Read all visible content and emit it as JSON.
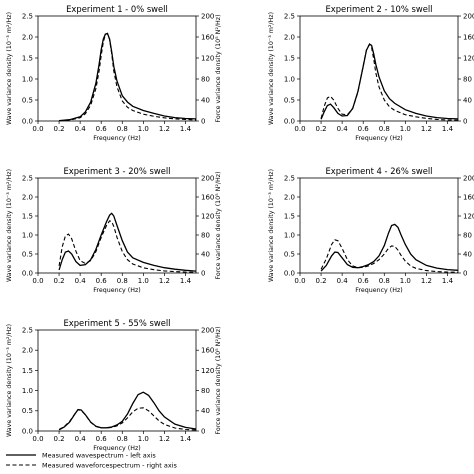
{
  "chart_data": [
    {
      "type": "line",
      "title": "Experiment 1 - 0% swell",
      "xlabel": "Frequency (Hz)",
      "ylabel_left": "Wave variance density (10⁻³ m²/Hz)",
      "ylabel_right": "Force variance density (10⁵ N²/Hz)",
      "xlim": [
        0,
        1.5
      ],
      "ylim_left": [
        0,
        2.5
      ],
      "ylim_right": [
        0,
        200
      ],
      "xticks": [
        "0.0",
        "0.2",
        "0.4",
        "0.6",
        "0.8",
        "1.0",
        "1.2",
        "1.4"
      ],
      "yticks_left": [
        "0.0",
        "0.5",
        "1.0",
        "1.5",
        "2.0",
        "2.5"
      ],
      "yticks_right": [
        "0",
        "40",
        "80",
        "120",
        "160",
        "200"
      ],
      "series": [
        {
          "style": "solid",
          "x": [
            0.2,
            0.3,
            0.4,
            0.45,
            0.5,
            0.55,
            0.58,
            0.6,
            0.62,
            0.64,
            0.66,
            0.68,
            0.7,
            0.72,
            0.75,
            0.8,
            0.85,
            0.9,
            1.0,
            1.1,
            1.2,
            1.3,
            1.4,
            1.5
          ],
          "y": [
            0.01,
            0.03,
            0.1,
            0.22,
            0.45,
            0.9,
            1.35,
            1.7,
            1.95,
            2.07,
            2.08,
            1.95,
            1.65,
            1.3,
            0.95,
            0.6,
            0.45,
            0.35,
            0.25,
            0.18,
            0.12,
            0.08,
            0.06,
            0.05
          ]
        },
        {
          "style": "dashed",
          "x": [
            0.2,
            0.3,
            0.4,
            0.45,
            0.5,
            0.55,
            0.58,
            0.6,
            0.62,
            0.64,
            0.66,
            0.68,
            0.7,
            0.72,
            0.75,
            0.8,
            0.85,
            0.9,
            1.0,
            1.1,
            1.2,
            1.3,
            1.4,
            1.5
          ],
          "y": [
            0.5,
            1.5,
            6,
            14,
            30,
            62,
            95,
            125,
            150,
            165,
            167,
            155,
            128,
            95,
            65,
            38,
            26,
            20,
            13,
            9,
            6,
            4,
            3,
            2
          ]
        }
      ]
    },
    {
      "type": "line",
      "title": "Experiment 2 - 10% swell",
      "xlabel": "Frequency (Hz)",
      "ylabel_left": "Wave variance density (10⁻³ m²/Hz)",
      "ylabel_right": "Force variance density (10⁵ N²/Hz)",
      "xlim": [
        0,
        1.5
      ],
      "ylim_left": [
        0,
        2.5
      ],
      "ylim_right": [
        0,
        200
      ],
      "xticks": [
        "0.0",
        "0.2",
        "0.4",
        "0.6",
        "0.8",
        "1.0",
        "1.2",
        "1.4"
      ],
      "yticks_left": [
        "0.0",
        "0.5",
        "1.0",
        "1.5",
        "2.0",
        "2.5"
      ],
      "yticks_right": [
        "0",
        "40",
        "80",
        "120",
        "160",
        "200"
      ],
      "series": [
        {
          "style": "solid",
          "x": [
            0.2,
            0.23,
            0.26,
            0.29,
            0.32,
            0.36,
            0.4,
            0.45,
            0.5,
            0.55,
            0.6,
            0.63,
            0.66,
            0.68,
            0.7,
            0.72,
            0.75,
            0.8,
            0.85,
            0.9,
            1.0,
            1.1,
            1.2,
            1.3,
            1.4,
            1.5
          ],
          "y": [
            0.04,
            0.22,
            0.37,
            0.4,
            0.32,
            0.18,
            0.12,
            0.13,
            0.3,
            0.7,
            1.3,
            1.68,
            1.83,
            1.8,
            1.6,
            1.35,
            1.05,
            0.72,
            0.53,
            0.42,
            0.27,
            0.18,
            0.12,
            0.08,
            0.06,
            0.05
          ]
        },
        {
          "style": "dashed",
          "x": [
            0.2,
            0.23,
            0.26,
            0.29,
            0.32,
            0.36,
            0.4,
            0.45,
            0.5,
            0.55,
            0.6,
            0.63,
            0.66,
            0.68,
            0.7,
            0.72,
            0.75,
            0.8,
            0.85,
            0.9,
            1.0,
            1.1,
            1.2,
            1.3,
            1.4,
            1.5
          ],
          "y": [
            5,
            28,
            44,
            47,
            40,
            24,
            13,
            12,
            24,
            55,
            105,
            135,
            146,
            140,
            118,
            92,
            65,
            40,
            27,
            20,
            12,
            8,
            5,
            3,
            2,
            1.5
          ]
        }
      ]
    },
    {
      "type": "line",
      "title": "Experiment 3 - 20% swell",
      "xlabel": "Frequency (Hz)",
      "ylabel_left": "Wave variance density (10⁻³ m²/Hz)",
      "ylabel_right": "Force variance density (10⁵ N²/Hz)",
      "xlim": [
        0,
        1.5
      ],
      "ylim_left": [
        0,
        2.5
      ],
      "ylim_right": [
        0,
        200
      ],
      "xticks": [
        "0.0",
        "0.2",
        "0.4",
        "0.6",
        "0.8",
        "1.0",
        "1.2",
        "1.4"
      ],
      "yticks_left": [
        "0.0",
        "0.5",
        "1.0",
        "1.5",
        "2.0",
        "2.5"
      ],
      "yticks_right": [
        "0",
        "40",
        "80",
        "120",
        "160",
        "200"
      ],
      "series": [
        {
          "style": "solid",
          "x": [
            0.2,
            0.23,
            0.26,
            0.29,
            0.32,
            0.36,
            0.4,
            0.45,
            0.5,
            0.55,
            0.6,
            0.65,
            0.68,
            0.7,
            0.72,
            0.75,
            0.8,
            0.85,
            0.9,
            1.0,
            1.1,
            1.2,
            1.3,
            1.4,
            1.5
          ],
          "y": [
            0.08,
            0.35,
            0.55,
            0.58,
            0.5,
            0.3,
            0.2,
            0.22,
            0.35,
            0.62,
            1.0,
            1.35,
            1.52,
            1.57,
            1.5,
            1.25,
            0.85,
            0.55,
            0.4,
            0.28,
            0.2,
            0.14,
            0.1,
            0.07,
            0.05
          ]
        },
        {
          "style": "dashed",
          "x": [
            0.2,
            0.23,
            0.26,
            0.29,
            0.32,
            0.36,
            0.4,
            0.45,
            0.5,
            0.55,
            0.6,
            0.65,
            0.68,
            0.7,
            0.72,
            0.75,
            0.8,
            0.85,
            0.9,
            1.0,
            1.1,
            1.2,
            1.3,
            1.4,
            1.5
          ],
          "y": [
            15,
            55,
            78,
            82,
            72,
            46,
            26,
            20,
            26,
            45,
            75,
            100,
            110,
            108,
            98,
            75,
            45,
            28,
            19,
            11,
            7,
            4.5,
            3,
            2,
            1.5
          ]
        }
      ]
    },
    {
      "type": "line",
      "title": "Experiment 4 - 26% swell",
      "xlabel": "Frequency (Hz)",
      "ylabel_left": "Wave variance density (10⁻³ m²/Hz)",
      "ylabel_right": "Force variance density (10⁵ N²/Hz)",
      "xlim": [
        0,
        1.5
      ],
      "ylim_left": [
        0,
        2.5
      ],
      "ylim_right": [
        0,
        200
      ],
      "xticks": [
        "0.0",
        "0.2",
        "0.4",
        "0.6",
        "0.8",
        "1.0",
        "1.2",
        "1.4"
      ],
      "yticks_left": [
        "0.0",
        "0.5",
        "1.0",
        "1.5",
        "2.0",
        "2.5"
      ],
      "yticks_right": [
        "0",
        "40",
        "80",
        "120",
        "160",
        "200"
      ],
      "series": [
        {
          "style": "solid",
          "x": [
            0.2,
            0.25,
            0.3,
            0.33,
            0.36,
            0.4,
            0.45,
            0.5,
            0.55,
            0.6,
            0.65,
            0.7,
            0.75,
            0.8,
            0.84,
            0.87,
            0.9,
            0.93,
            0.96,
            1.0,
            1.05,
            1.1,
            1.2,
            1.3,
            1.4,
            1.5
          ],
          "y": [
            0.05,
            0.2,
            0.45,
            0.55,
            0.54,
            0.4,
            0.22,
            0.15,
            0.14,
            0.17,
            0.22,
            0.3,
            0.45,
            0.72,
            1.05,
            1.25,
            1.28,
            1.2,
            1.0,
            0.75,
            0.5,
            0.35,
            0.2,
            0.13,
            0.09,
            0.07
          ]
        },
        {
          "style": "dashed",
          "x": [
            0.2,
            0.25,
            0.3,
            0.33,
            0.36,
            0.4,
            0.45,
            0.5,
            0.55,
            0.6,
            0.65,
            0.7,
            0.75,
            0.8,
            0.84,
            0.87,
            0.9,
            0.93,
            0.96,
            1.0,
            1.05,
            1.1,
            1.2,
            1.3,
            1.4,
            1.5
          ],
          "y": [
            8,
            30,
            60,
            70,
            68,
            52,
            28,
            15,
            11,
            12,
            15,
            20,
            28,
            40,
            52,
            57,
            56,
            48,
            37,
            25,
            15,
            10,
            5,
            3,
            2,
            1.5
          ]
        }
      ]
    },
    {
      "type": "line",
      "title": "Experiment 5 - 55% swell",
      "xlabel": "Frequency (Hz)",
      "ylabel_left": "Wave variance density (10⁻³ m²/Hz)",
      "ylabel_right": "Force variance density (10⁵ N²/Hz)",
      "xlim": [
        0,
        1.5
      ],
      "ylim_left": [
        0,
        2.5
      ],
      "ylim_right": [
        0,
        200
      ],
      "xticks": [
        "0.0",
        "0.2",
        "0.4",
        "0.6",
        "0.8",
        "1.0",
        "1.2",
        "1.4"
      ],
      "yticks_left": [
        "0.0",
        "0.5",
        "1.0",
        "1.5",
        "2.0",
        "2.5"
      ],
      "yticks_right": [
        "0",
        "40",
        "80",
        "120",
        "160",
        "200"
      ],
      "series": [
        {
          "style": "solid",
          "x": [
            0.2,
            0.25,
            0.3,
            0.35,
            0.38,
            0.41,
            0.45,
            0.5,
            0.55,
            0.6,
            0.65,
            0.7,
            0.75,
            0.8,
            0.85,
            0.9,
            0.95,
            1.0,
            1.05,
            1.1,
            1.15,
            1.2,
            1.3,
            1.4,
            1.5
          ],
          "y": [
            0.03,
            0.1,
            0.22,
            0.42,
            0.53,
            0.52,
            0.4,
            0.22,
            0.12,
            0.08,
            0.08,
            0.1,
            0.15,
            0.24,
            0.42,
            0.68,
            0.9,
            0.96,
            0.88,
            0.7,
            0.5,
            0.35,
            0.17,
            0.09,
            0.05
          ]
        },
        {
          "style": "dashed",
          "x": [
            0.2,
            0.25,
            0.3,
            0.35,
            0.38,
            0.41,
            0.45,
            0.5,
            0.55,
            0.6,
            0.65,
            0.7,
            0.75,
            0.8,
            0.85,
            0.9,
            0.95,
            1.0,
            1.05,
            1.1,
            1.15,
            1.2,
            1.3,
            1.4,
            1.5
          ],
          "y": [
            3,
            9,
            19,
            34,
            42,
            41,
            32,
            17,
            9,
            6,
            6,
            7,
            10,
            16,
            26,
            38,
            45,
            46,
            40,
            30,
            20,
            13,
            6,
            3,
            2
          ]
        }
      ]
    }
  ],
  "legend": {
    "entries": [
      {
        "label": "Measured wavespectrum - left axis",
        "style": "solid"
      },
      {
        "label": "Measured waveforcespectrum - right axis",
        "style": "dashed"
      }
    ]
  }
}
